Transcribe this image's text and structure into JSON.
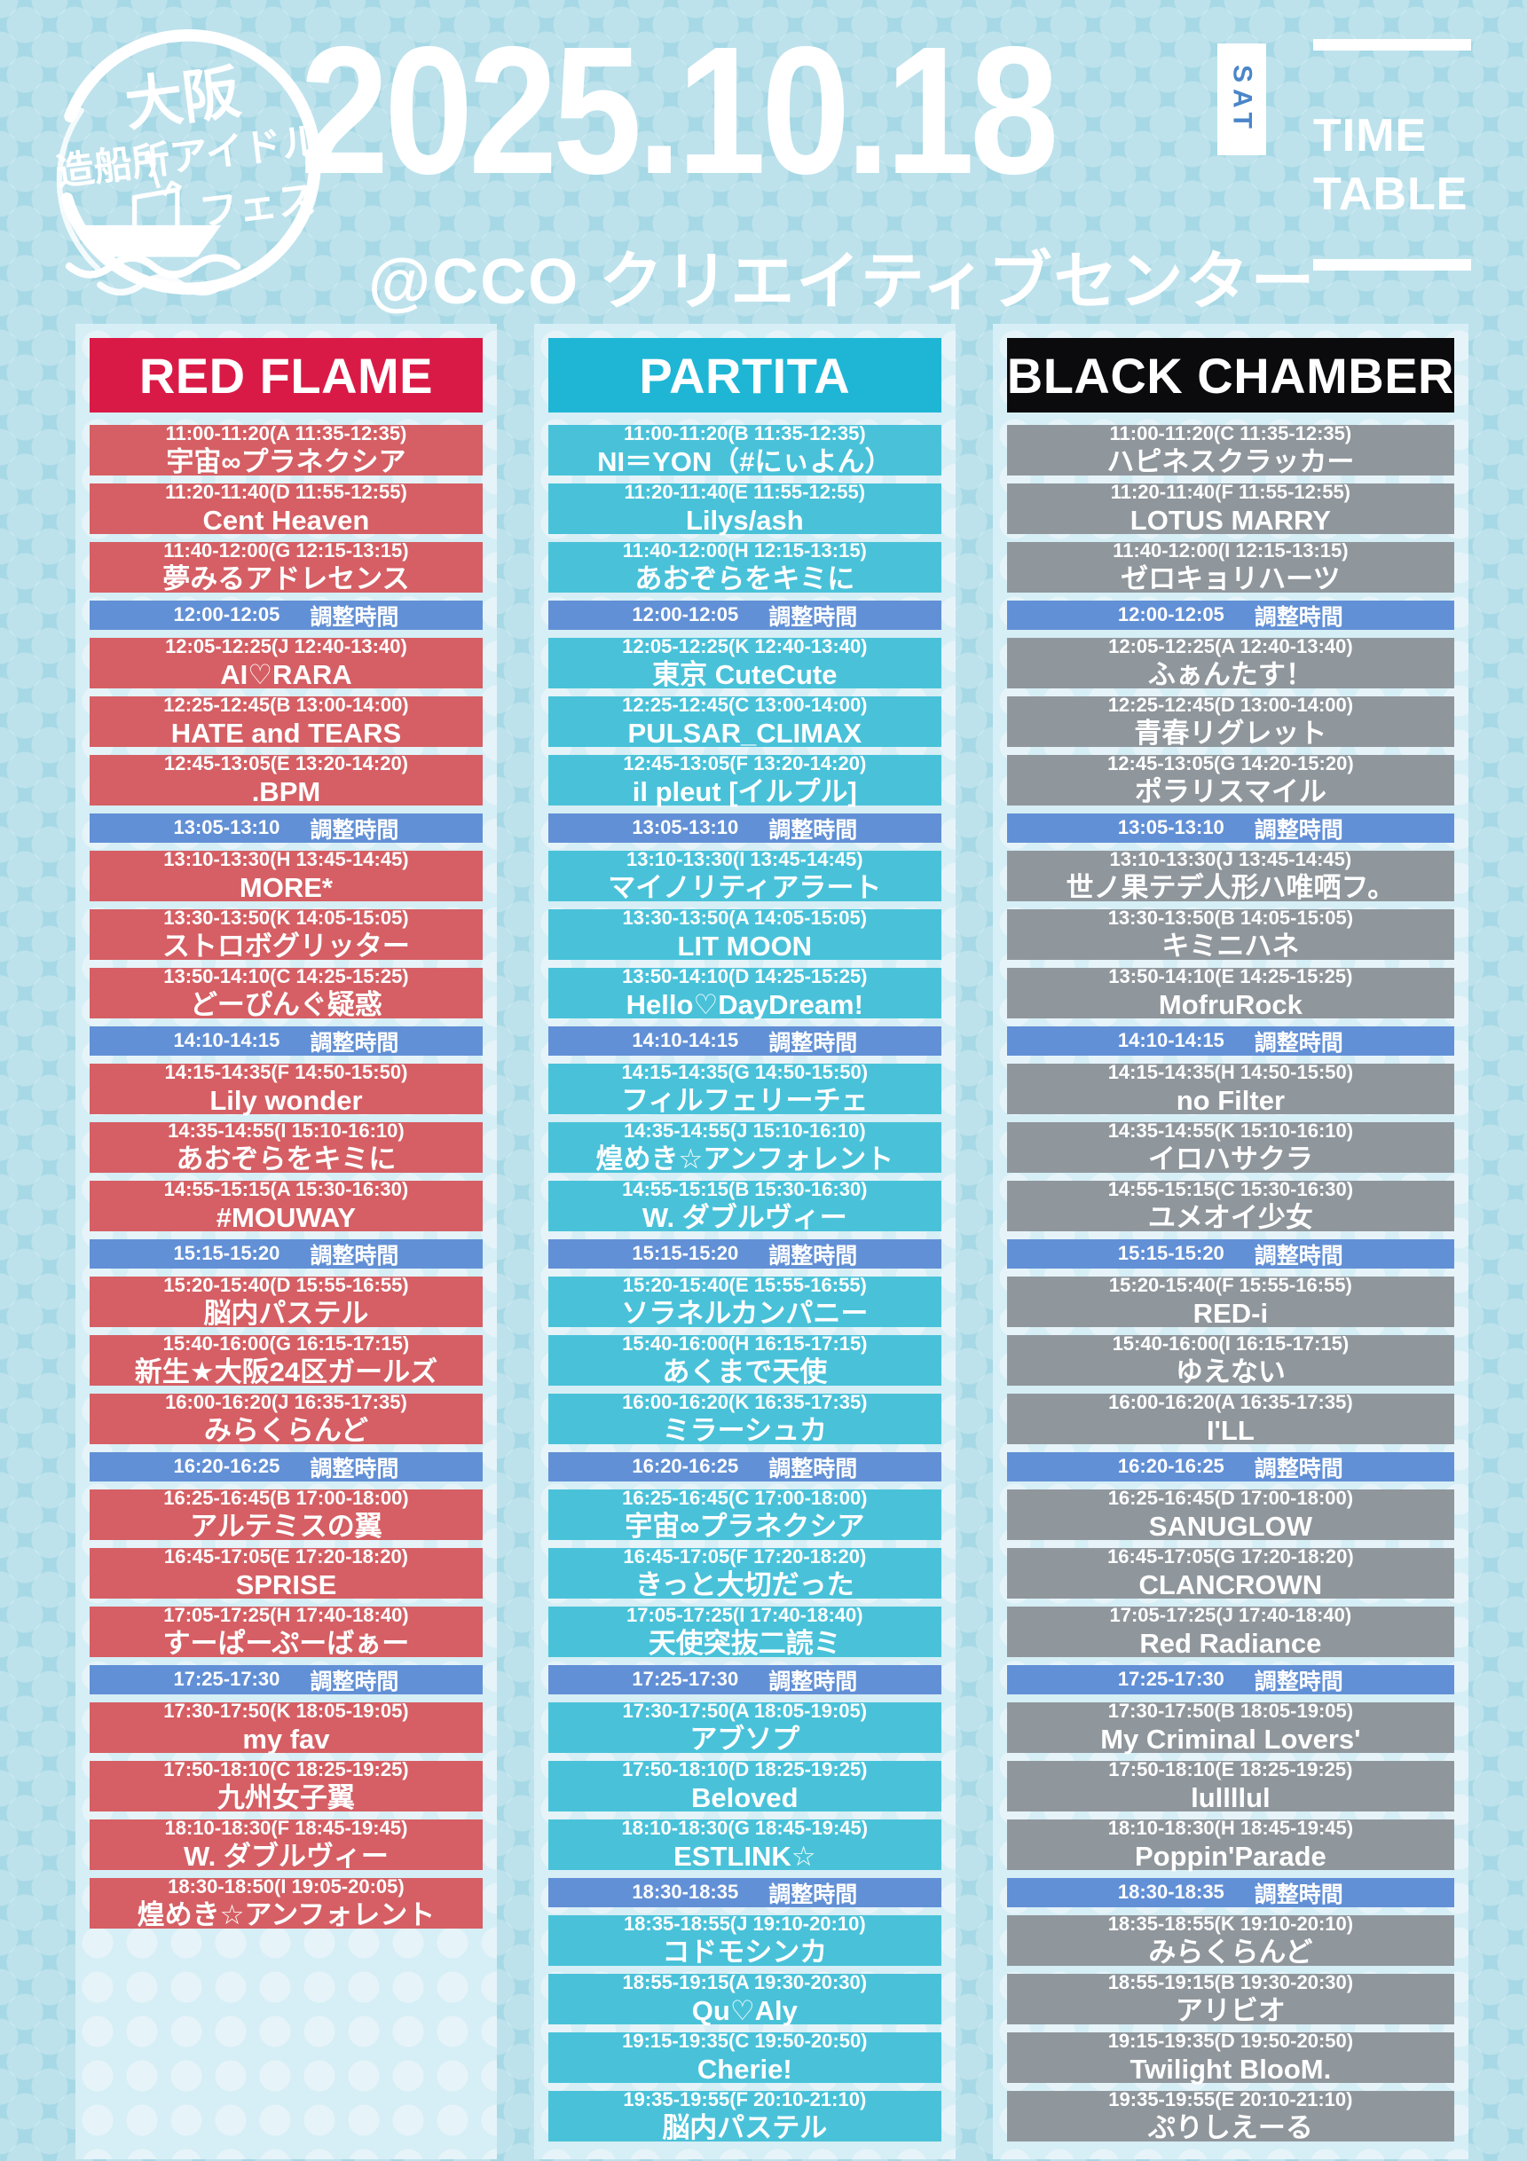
{
  "header": {
    "date": "2025.10.18",
    "day": "SAT",
    "title_line1": "TIME",
    "title_line2": "TABLE",
    "venue": "@CCO クリエイティブセンター",
    "logo": {
      "line1": "大阪",
      "line2": "造船所アイドル",
      "line3": "フェス"
    }
  },
  "adjustment_label": "調整時間",
  "colors": {
    "background": "#a6d8e5",
    "panel": "#d6eef5",
    "adjustment_bg": "#6290d6",
    "sat_text": "#4a86c8",
    "red_flame_header": "#da1a46",
    "red_flame_row": "#d55f64",
    "partita_header": "#1fb6d5",
    "partita_row": "#49c2d9",
    "black_chamber_header": "#0b0b0d",
    "black_chamber_row": "#8f969c"
  },
  "stages": [
    {
      "name": "RED FLAME",
      "header_bg": "#da1a46",
      "row_bg": "#d55f64",
      "slots": [
        {
          "type": "live",
          "time": "11:00-11:20(A 11:35-12:35)",
          "artist": "宇宙∞プラネクシア"
        },
        {
          "type": "live",
          "time": "11:20-11:40(D 11:55-12:55)",
          "artist": "Cent Heaven"
        },
        {
          "type": "live",
          "time": "11:40-12:00(G 12:15-13:15)",
          "artist": "夢みるアドレセンス"
        },
        {
          "type": "adjustment",
          "time": "12:00-12:05"
        },
        {
          "type": "live",
          "time": "12:05-12:25(J 12:40-13:40)",
          "artist": "AI♡RARA"
        },
        {
          "type": "live",
          "time": "12:25-12:45(B 13:00-14:00)",
          "artist": "HATE and TEARS"
        },
        {
          "type": "live",
          "time": "12:45-13:05(E 13:20-14:20)",
          "artist": ".BPM"
        },
        {
          "type": "adjustment",
          "time": "13:05-13:10"
        },
        {
          "type": "live",
          "time": "13:10-13:30(H 13:45-14:45)",
          "artist": "MORE*"
        },
        {
          "type": "live",
          "time": "13:30-13:50(K 14:05-15:05)",
          "artist": "ストロボグリッター"
        },
        {
          "type": "live",
          "time": "13:50-14:10(C 14:25-15:25)",
          "artist": "どーぴんぐ疑惑"
        },
        {
          "type": "adjustment",
          "time": "14:10-14:15"
        },
        {
          "type": "live",
          "time": "14:15-14:35(F 14:50-15:50)",
          "artist": "Lily wonder"
        },
        {
          "type": "live",
          "time": "14:35-14:55(I 15:10-16:10)",
          "artist": "あおぞらをキミに"
        },
        {
          "type": "live",
          "time": "14:55-15:15(A 15:30-16:30)",
          "artist": "#MOUWAY"
        },
        {
          "type": "adjustment",
          "time": "15:15-15:20"
        },
        {
          "type": "live",
          "time": "15:20-15:40(D 15:55-16:55)",
          "artist": "脳内パステル"
        },
        {
          "type": "live",
          "time": "15:40-16:00(G 16:15-17:15)",
          "artist": "新生★大阪24区ガールズ"
        },
        {
          "type": "live",
          "time": "16:00-16:20(J 16:35-17:35)",
          "artist": "みらくらんど"
        },
        {
          "type": "adjustment",
          "time": "16:20-16:25"
        },
        {
          "type": "live",
          "time": "16:25-16:45(B 17:00-18:00)",
          "artist": "アルテミスの翼"
        },
        {
          "type": "live",
          "time": "16:45-17:05(E 17:20-18:20)",
          "artist": "SPRISE"
        },
        {
          "type": "live",
          "time": "17:05-17:25(H 17:40-18:40)",
          "artist": "すーぱーぷーばぁー"
        },
        {
          "type": "adjustment",
          "time": "17:25-17:30"
        },
        {
          "type": "live",
          "time": "17:30-17:50(K 18:05-19:05)",
          "artist": "my fav"
        },
        {
          "type": "live",
          "time": "17:50-18:10(C 18:25-19:25)",
          "artist": "九州女子翼"
        },
        {
          "type": "live",
          "time": "18:10-18:30(F 18:45-19:45)",
          "artist": "W. ダブルヴィー"
        },
        {
          "type": "live",
          "time": "18:30-18:50(I 19:05-20:05)",
          "artist": "煌めき☆アンフォレント"
        }
      ]
    },
    {
      "name": "PARTITA",
      "header_bg": "#1fb6d5",
      "row_bg": "#49c2d9",
      "slots": [
        {
          "type": "live",
          "time": "11:00-11:20(B 11:35-12:35)",
          "artist": "NI＝YON（#にぃよん）"
        },
        {
          "type": "live",
          "time": "11:20-11:40(E 11:55-12:55)",
          "artist": "Lilys/ash"
        },
        {
          "type": "live",
          "time": "11:40-12:00(H 12:15-13:15)",
          "artist": "あおぞらをキミに"
        },
        {
          "type": "adjustment",
          "time": "12:00-12:05"
        },
        {
          "type": "live",
          "time": "12:05-12:25(K 12:40-13:40)",
          "artist": "東京 CuteCute"
        },
        {
          "type": "live",
          "time": "12:25-12:45(C 13:00-14:00)",
          "artist": "PULSAR_CLIMAX"
        },
        {
          "type": "live",
          "time": "12:45-13:05(F 13:20-14:20)",
          "artist": "il pleut [イルプル]"
        },
        {
          "type": "adjustment",
          "time": "13:05-13:10"
        },
        {
          "type": "live",
          "time": "13:10-13:30(I 13:45-14:45)",
          "artist": "マイノリティアラート"
        },
        {
          "type": "live",
          "time": "13:30-13:50(A 14:05-15:05)",
          "artist": "LIT MOON"
        },
        {
          "type": "live",
          "time": "13:50-14:10(D 14:25-15:25)",
          "artist": "Hello♡DayDream!"
        },
        {
          "type": "adjustment",
          "time": "14:10-14:15"
        },
        {
          "type": "live",
          "time": "14:15-14:35(G 14:50-15:50)",
          "artist": "フィルフェリーチェ"
        },
        {
          "type": "live",
          "time": "14:35-14:55(J 15:10-16:10)",
          "artist": "煌めき☆アンフォレント"
        },
        {
          "type": "live",
          "time": "14:55-15:15(B 15:30-16:30)",
          "artist": "W. ダブルヴィー"
        },
        {
          "type": "adjustment",
          "time": "15:15-15:20"
        },
        {
          "type": "live",
          "time": "15:20-15:40(E 15:55-16:55)",
          "artist": "ソラネルカンパニー"
        },
        {
          "type": "live",
          "time": "15:40-16:00(H 16:15-17:15)",
          "artist": "あくまで天使"
        },
        {
          "type": "live",
          "time": "16:00-16:20(K 16:35-17:35)",
          "artist": "ミラーシュカ"
        },
        {
          "type": "adjustment",
          "time": "16:20-16:25"
        },
        {
          "type": "live",
          "time": "16:25-16:45(C 17:00-18:00)",
          "artist": "宇宙∞プラネクシア"
        },
        {
          "type": "live",
          "time": "16:45-17:05(F 17:20-18:20)",
          "artist": "きっと大切だった"
        },
        {
          "type": "live",
          "time": "17:05-17:25(I 17:40-18:40)",
          "artist": "天使突抜二読ミ"
        },
        {
          "type": "adjustment",
          "time": "17:25-17:30"
        },
        {
          "type": "live",
          "time": "17:30-17:50(A 18:05-19:05)",
          "artist": "アブソプ"
        },
        {
          "type": "live",
          "time": "17:50-18:10(D 18:25-19:25)",
          "artist": "Beloved"
        },
        {
          "type": "live",
          "time": "18:10-18:30(G 18:45-19:45)",
          "artist": "ESTLINK☆"
        },
        {
          "type": "adjustment",
          "time": "18:30-18:35"
        },
        {
          "type": "live",
          "time": "18:35-18:55(J 19:10-20:10)",
          "artist": "コドモシンカ"
        },
        {
          "type": "live",
          "time": "18:55-19:15(A 19:30-20:30)",
          "artist": "Qu♡Aly"
        },
        {
          "type": "live",
          "time": "19:15-19:35(C 19:50-20:50)",
          "artist": "Cherie!"
        },
        {
          "type": "live",
          "time": "19:35-19:55(F 20:10-21:10)",
          "artist": "脳内パステル"
        }
      ]
    },
    {
      "name": "BLACK CHAMBER",
      "header_bg": "#0b0b0d",
      "row_bg": "#8f969c",
      "slots": [
        {
          "type": "live",
          "time": "11:00-11:20(C 11:35-12:35)",
          "artist": "ハピネスクラッカー"
        },
        {
          "type": "live",
          "time": "11:20-11:40(F 11:55-12:55)",
          "artist": "LOTUS MARRY"
        },
        {
          "type": "live",
          "time": "11:40-12:00(I 12:15-13:15)",
          "artist": "ゼロキョリハーツ"
        },
        {
          "type": "adjustment",
          "time": "12:00-12:05"
        },
        {
          "type": "live",
          "time": "12:05-12:25(A 12:40-13:40)",
          "artist": "ふぁんたす！"
        },
        {
          "type": "live",
          "time": "12:25-12:45(D 13:00-14:00)",
          "artist": "青春リグレット"
        },
        {
          "type": "live",
          "time": "12:45-13:05(G 14:20-15:20)",
          "artist": "ポラリスマイル"
        },
        {
          "type": "adjustment",
          "time": "13:05-13:10"
        },
        {
          "type": "live",
          "time": "13:10-13:30(J 13:45-14:45)",
          "artist": "世ノ果テデ人形ハ唯哂フ。"
        },
        {
          "type": "live",
          "time": "13:30-13:50(B 14:05-15:05)",
          "artist": "キミニハネ"
        },
        {
          "type": "live",
          "time": "13:50-14:10(E 14:25-15:25)",
          "artist": "MofruRock"
        },
        {
          "type": "adjustment",
          "time": "14:10-14:15"
        },
        {
          "type": "live",
          "time": "14:15-14:35(H 14:50-15:50)",
          "artist": "no Filter"
        },
        {
          "type": "live",
          "time": "14:35-14:55(K 15:10-16:10)",
          "artist": "イロハサクラ"
        },
        {
          "type": "live",
          "time": "14:55-15:15(C 15:30-16:30)",
          "artist": "ユメオイ少女"
        },
        {
          "type": "adjustment",
          "time": "15:15-15:20"
        },
        {
          "type": "live",
          "time": "15:20-15:40(F 15:55-16:55)",
          "artist": "RED-i"
        },
        {
          "type": "live",
          "time": "15:40-16:00(I 16:15-17:15)",
          "artist": "ゆえない"
        },
        {
          "type": "live",
          "time": "16:00-16:20(A 16:35-17:35)",
          "artist": "I'LL"
        },
        {
          "type": "adjustment",
          "time": "16:20-16:25"
        },
        {
          "type": "live",
          "time": "16:25-16:45(D 17:00-18:00)",
          "artist": "SANUGLOW"
        },
        {
          "type": "live",
          "time": "16:45-17:05(G 17:20-18:20)",
          "artist": "CLANCROWN"
        },
        {
          "type": "live",
          "time": "17:05-17:25(J 17:40-18:40)",
          "artist": "Red Radiance"
        },
        {
          "type": "adjustment",
          "time": "17:25-17:30"
        },
        {
          "type": "live",
          "time": "17:30-17:50(B 18:05-19:05)",
          "artist": "My Criminal Lovers'"
        },
        {
          "type": "live",
          "time": "17:50-18:10(E 18:25-19:25)",
          "artist": "lullllul"
        },
        {
          "type": "live",
          "time": "18:10-18:30(H 18:45-19:45)",
          "artist": "Poppin'Parade"
        },
        {
          "type": "adjustment",
          "time": "18:30-18:35"
        },
        {
          "type": "live",
          "time": "18:35-18:55(K 19:10-20:10)",
          "artist": "みらくらんど"
        },
        {
          "type": "live",
          "time": "18:55-19:15(B 19:30-20:30)",
          "artist": "アリビオ"
        },
        {
          "type": "live",
          "time": "19:15-19:35(D 19:50-20:50)",
          "artist": "Twilight BlooM."
        },
        {
          "type": "live",
          "time": "19:35-19:55(E 20:10-21:10)",
          "artist": "ぷりしえーる"
        }
      ]
    }
  ]
}
